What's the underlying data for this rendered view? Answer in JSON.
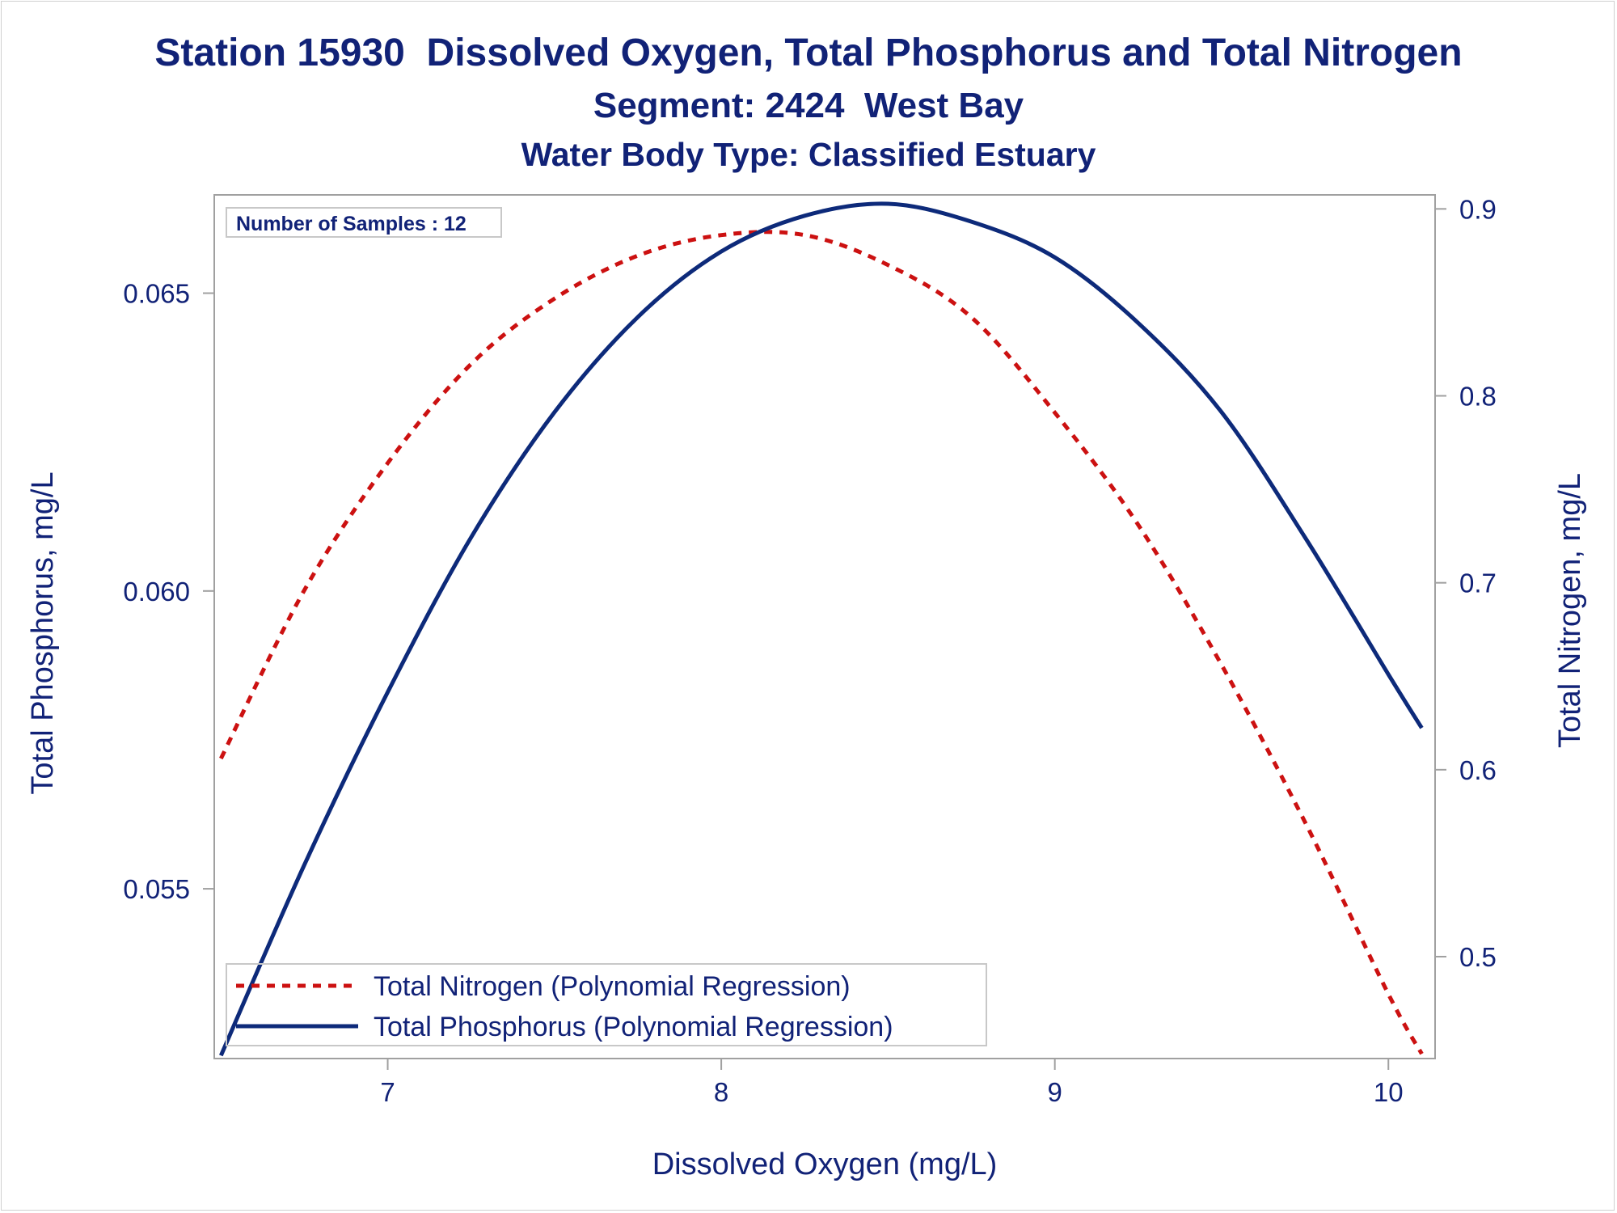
{
  "titles": {
    "line1": "Station 15930  Dissolved Oxygen, Total Phosphorus and Total Nitrogen",
    "line2": "Segment: 2424  West Bay",
    "line3": "Water Body Type: Classified Estuary"
  },
  "colors": {
    "text": "#112277",
    "phosphorus": "#0d2a7a",
    "nitrogen": "#cc1111",
    "frame": "#a0a0a0"
  },
  "chart_data": {
    "type": "line",
    "xlabel": "Dissolved Oxygen (mg/L)",
    "ylabel_left": "Total Phosphorus, mg/L",
    "ylabel_right": "Total Nitrogen, mg/L",
    "xlim": [
      6.48,
      10.14
    ],
    "ylim_left": [
      0.05215,
      0.06665
    ],
    "ylim_right": [
      0.4455,
      0.9075
    ],
    "x_ticks": [
      7,
      8,
      9,
      10
    ],
    "y_left_ticks": [
      0.055,
      0.06,
      0.065
    ],
    "y_right_ticks": [
      0.5,
      0.6,
      0.7,
      0.8,
      0.9
    ],
    "grid": false,
    "legend_position": "bottom-left",
    "annotation": "Number of Samples : 12",
    "x": [
      6.5,
      6.75,
      7.0,
      7.25,
      7.5,
      7.75,
      8.0,
      8.25,
      8.5,
      8.75,
      9.0,
      9.25,
      9.5,
      9.75,
      10.0,
      10.1
    ],
    "series": [
      {
        "name": "Total Nitrogen (Polynomial Regression)",
        "axis": "right",
        "style": "dashed",
        "values": [
          0.606,
          0.696,
          0.764,
          0.817,
          0.852,
          0.875,
          0.886,
          0.886,
          0.87,
          0.842,
          0.791,
          0.731,
          0.656,
          0.572,
          0.48,
          0.448
        ]
      },
      {
        "name": "Total Phosphorus (Polynomial Regression)",
        "axis": "left",
        "style": "solid",
        "values": [
          0.0522,
          0.0554,
          0.0583,
          0.0609,
          0.063,
          0.0646,
          0.0657,
          0.0663,
          0.0665,
          0.0662,
          0.0656,
          0.0645,
          0.063,
          0.0609,
          0.0586,
          0.0577
        ]
      }
    ]
  }
}
